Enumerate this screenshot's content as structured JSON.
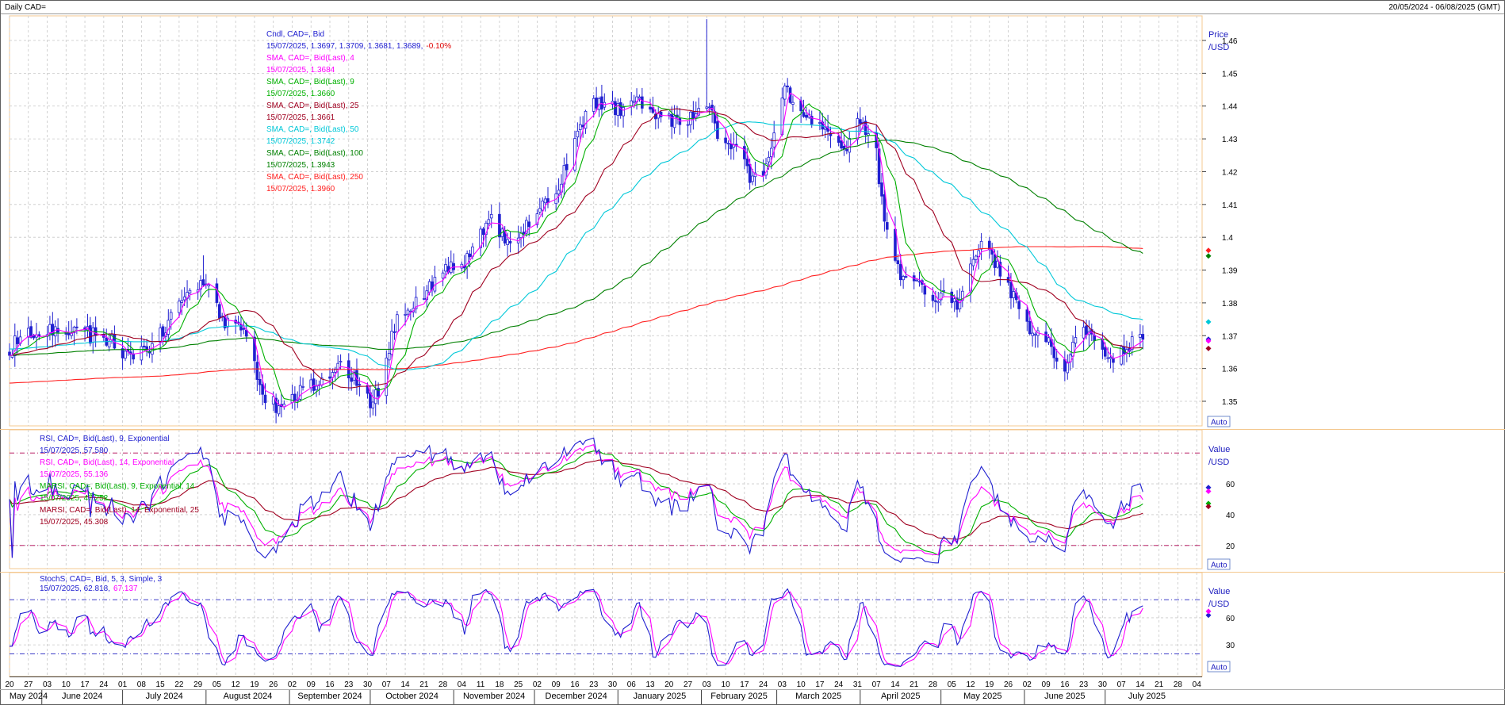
{
  "header": {
    "title": "Daily CAD=",
    "date_range": "20/05/2024 - 06/08/2025 (GMT)"
  },
  "colors": {
    "candle": "#2020d0",
    "sma4": "#ff00ff",
    "sma9": "#00b000",
    "sma25": "#a00020",
    "sma50": "#00c8d8",
    "sma100": "#008000",
    "sma250": "#ff2020",
    "rsi9": "#2020d0",
    "rsi14": "#ff00ff",
    "marsi9": "#00b000",
    "marsi25": "#a00020",
    "stoch_k": "#2020d0",
    "stoch_d": "#ff00ff",
    "panel_border": "#f4c890",
    "grid": "#c8c8c8",
    "level_line": "#b00050"
  },
  "chart_data": [
    {
      "type": "candlestick",
      "panel": "price",
      "legend": [
        {
          "name": "Cndl, CAD=, Bid",
          "value": "15/07/2025, 1.3697, 1.3709, 1.3681, 1.3689,",
          "change": "-0.10%",
          "color_key": "candle"
        },
        {
          "name": "SMA, CAD=, Bid(Last),  4",
          "value": "15/07/2025, 1.3684",
          "color_key": "sma4"
        },
        {
          "name": "SMA, CAD=, Bid(Last),  9",
          "value": "15/07/2025, 1.3660",
          "color_key": "sma9"
        },
        {
          "name": "SMA, CAD=, Bid(Last),  25",
          "value": "15/07/2025, 1.3661",
          "color_key": "sma25"
        },
        {
          "name": "SMA, CAD=, Bid(Last),  50",
          "value": "15/07/2025, 1.3742",
          "color_key": "sma50"
        },
        {
          "name": "SMA, CAD=, Bid(Last),  100",
          "value": "15/07/2025, 1.3943",
          "color_key": "sma100"
        },
        {
          "name": "SMA, CAD=, Bid(Last),  250",
          "value": "15/07/2025, 1.3960",
          "color_key": "sma250"
        }
      ],
      "y_axis_title": [
        "Price",
        "/USD"
      ],
      "y_ticks": [
        "1.46",
        "1.45",
        "1.44",
        "1.43",
        "1.42",
        "1.41",
        "1.4",
        "1.39",
        "1.38",
        "1.37",
        "1.36",
        "1.35"
      ],
      "ylim": [
        1.3425,
        1.4675
      ],
      "auto_label": "Auto",
      "close_anchors": [
        [
          "2024-05-20",
          1.364
        ],
        [
          "2024-05-24",
          1.371
        ],
        [
          "2024-06-05",
          1.372
        ],
        [
          "2024-06-14",
          1.371
        ],
        [
          "2024-06-26",
          1.369
        ],
        [
          "2024-07-03",
          1.364
        ],
        [
          "2024-07-12",
          1.366
        ],
        [
          "2024-07-24",
          1.383
        ],
        [
          "2024-08-02",
          1.385
        ],
        [
          "2024-08-07",
          1.375
        ],
        [
          "2024-08-14",
          1.372
        ],
        [
          "2024-08-23",
          1.351
        ],
        [
          "2024-08-27",
          1.349
        ],
        [
          "2024-09-10",
          1.355
        ],
        [
          "2024-09-18",
          1.361
        ],
        [
          "2024-09-25",
          1.358
        ],
        [
          "2024-10-01",
          1.35
        ],
        [
          "2024-10-04",
          1.354
        ],
        [
          "2024-10-11",
          1.375
        ],
        [
          "2024-10-24",
          1.386
        ],
        [
          "2024-10-31",
          1.391
        ],
        [
          "2024-11-06",
          1.393
        ],
        [
          "2024-11-15",
          1.408
        ],
        [
          "2024-11-21",
          1.397
        ],
        [
          "2024-11-26",
          1.401
        ],
        [
          "2024-12-04",
          1.409
        ],
        [
          "2024-12-10",
          1.415
        ],
        [
          "2024-12-17",
          1.433
        ],
        [
          "2024-12-23",
          1.44
        ],
        [
          "2025-01-02",
          1.439
        ],
        [
          "2025-01-10",
          1.441
        ],
        [
          "2025-01-17",
          1.437
        ],
        [
          "2025-01-24",
          1.435
        ],
        [
          "2025-01-29",
          1.438
        ],
        [
          "2025-02-03",
          1.442
        ],
        [
          "2025-02-07",
          1.431
        ],
        [
          "2025-02-14",
          1.427
        ],
        [
          "2025-02-19",
          1.418
        ],
        [
          "2025-02-25",
          1.421
        ],
        [
          "2025-03-04",
          1.445
        ],
        [
          "2025-03-10",
          1.439
        ],
        [
          "2025-03-14",
          1.437
        ],
        [
          "2025-03-21",
          1.431
        ],
        [
          "2025-03-27",
          1.428
        ],
        [
          "2025-04-01",
          1.437
        ],
        [
          "2025-04-07",
          1.425
        ],
        [
          "2025-04-09",
          1.412
        ],
        [
          "2025-04-11",
          1.402
        ],
        [
          "2025-04-16",
          1.387
        ],
        [
          "2025-04-25",
          1.384
        ],
        [
          "2025-05-02",
          1.382
        ],
        [
          "2025-05-08",
          1.379
        ],
        [
          "2025-05-13",
          1.395
        ],
        [
          "2025-05-19",
          1.398
        ],
        [
          "2025-05-23",
          1.388
        ],
        [
          "2025-05-29",
          1.38
        ],
        [
          "2025-06-03",
          1.372
        ],
        [
          "2025-06-09",
          1.369
        ],
        [
          "2025-06-16",
          1.359
        ],
        [
          "2025-06-19",
          1.366
        ],
        [
          "2025-06-25",
          1.373
        ],
        [
          "2025-07-01",
          1.364
        ],
        [
          "2025-07-04",
          1.36
        ],
        [
          "2025-07-08",
          1.366
        ],
        [
          "2025-07-11",
          1.368
        ],
        [
          "2025-07-15",
          1.369
        ]
      ],
      "spikes": [
        [
          "2025-02-03",
          1.4665
        ],
        [
          "2024-07-31",
          1.3945
        ]
      ]
    },
    {
      "type": "line",
      "panel": "rsi",
      "legend": [
        {
          "name": "RSI, CAD=, Bid(Last),  9, Exponential",
          "value": "15/07/2025, 57.580",
          "color_key": "rsi9"
        },
        {
          "name": "RSI, CAD=, Bid(Last),  14, Exponential",
          "value": "15/07/2025, 55.136",
          "color_key": "rsi14"
        },
        {
          "name": "MARSI, CAD=, Bid(Last),  9, Exponential, 14",
          "value": "15/07/2025, 47.252",
          "color_key": "marsi9"
        },
        {
          "name": "MARSI, CAD=, Bid(Last),  14, Exponential, 25",
          "value": "15/07/2025, 45.308",
          "color_key": "marsi25"
        }
      ],
      "y_axis_title": [
        "Value",
        "/USD"
      ],
      "y_ticks": [
        "60",
        "40",
        "20"
      ],
      "levels": [
        80,
        20
      ],
      "ylim": [
        5,
        95
      ],
      "auto_label": "Auto"
    },
    {
      "type": "line",
      "panel": "stochastic",
      "legend": [
        {
          "name": "StochS, CAD=, Bid,  5, 3, Simple, 3",
          "value": "15/07/2025, 62.818,",
          "value2": "67.137",
          "color_key": "stoch_k"
        }
      ],
      "y_axis_title": [
        "Value",
        "/USD"
      ],
      "y_ticks": [
        "60",
        "30"
      ],
      "levels": [
        80,
        20
      ],
      "ylim": [
        -5,
        110
      ],
      "auto_label": "Auto"
    }
  ],
  "x_axis": {
    "start": "2024-05-20",
    "end": "2025-08-06",
    "day_ticks": [
      [
        "2024-05-20",
        "20"
      ],
      [
        "2024-05-27",
        "27"
      ],
      [
        "2024-06-03",
        "03"
      ],
      [
        "2024-06-10",
        "10"
      ],
      [
        "2024-06-17",
        "17"
      ],
      [
        "2024-06-24",
        "24"
      ],
      [
        "2024-07-01",
        "01"
      ],
      [
        "2024-07-08",
        "08"
      ],
      [
        "2024-07-15",
        "15"
      ],
      [
        "2024-07-22",
        "22"
      ],
      [
        "2024-07-29",
        "29"
      ],
      [
        "2024-08-05",
        "05"
      ],
      [
        "2024-08-12",
        "12"
      ],
      [
        "2024-08-19",
        "19"
      ],
      [
        "2024-08-26",
        "26"
      ],
      [
        "2024-09-02",
        "02"
      ],
      [
        "2024-09-09",
        "09"
      ],
      [
        "2024-09-16",
        "16"
      ],
      [
        "2024-09-23",
        "23"
      ],
      [
        "2024-09-30",
        "30"
      ],
      [
        "2024-10-07",
        "07"
      ],
      [
        "2024-10-14",
        "14"
      ],
      [
        "2024-10-21",
        "21"
      ],
      [
        "2024-10-28",
        "28"
      ],
      [
        "2024-11-04",
        "04"
      ],
      [
        "2024-11-11",
        "11"
      ],
      [
        "2024-11-18",
        "18"
      ],
      [
        "2024-11-25",
        "25"
      ],
      [
        "2024-12-02",
        "02"
      ],
      [
        "2024-12-09",
        "09"
      ],
      [
        "2024-12-16",
        "16"
      ],
      [
        "2024-12-23",
        "23"
      ],
      [
        "2024-12-30",
        "30"
      ],
      [
        "2025-01-06",
        "06"
      ],
      [
        "2025-01-13",
        "13"
      ],
      [
        "2025-01-20",
        "20"
      ],
      [
        "2025-01-27",
        "27"
      ],
      [
        "2025-02-03",
        "03"
      ],
      [
        "2025-02-10",
        "10"
      ],
      [
        "2025-02-17",
        "17"
      ],
      [
        "2025-02-24",
        "24"
      ],
      [
        "2025-03-03",
        "03"
      ],
      [
        "2025-03-10",
        "10"
      ],
      [
        "2025-03-17",
        "17"
      ],
      [
        "2025-03-24",
        "24"
      ],
      [
        "2025-03-31",
        "31"
      ],
      [
        "2025-04-07",
        "07"
      ],
      [
        "2025-04-14",
        "14"
      ],
      [
        "2025-04-21",
        "21"
      ],
      [
        "2025-04-28",
        "28"
      ],
      [
        "2025-05-05",
        "05"
      ],
      [
        "2025-05-12",
        "12"
      ],
      [
        "2025-05-19",
        "19"
      ],
      [
        "2025-05-26",
        "26"
      ],
      [
        "2025-06-02",
        "02"
      ],
      [
        "2025-06-09",
        "09"
      ],
      [
        "2025-06-16",
        "16"
      ],
      [
        "2025-06-23",
        "23"
      ],
      [
        "2025-06-30",
        "30"
      ],
      [
        "2025-07-07",
        "07"
      ],
      [
        "2025-07-14",
        "14"
      ],
      [
        "2025-07-21",
        "21"
      ],
      [
        "2025-07-28",
        "28"
      ],
      [
        "2025-08-04",
        "04"
      ]
    ],
    "month_labels": [
      [
        "2024-05-20",
        "May 2024"
      ],
      [
        "2024-06-01",
        "June 2024"
      ],
      [
        "2024-07-01",
        "July 2024"
      ],
      [
        "2024-08-01",
        "August 2024"
      ],
      [
        "2024-09-01",
        "September 2024"
      ],
      [
        "2024-10-01",
        "October 2024"
      ],
      [
        "2024-11-01",
        "November 2024"
      ],
      [
        "2024-12-01",
        "December 2024"
      ],
      [
        "2025-01-01",
        "January 2025"
      ],
      [
        "2025-02-01",
        "February 2025"
      ],
      [
        "2025-03-01",
        "March 2025"
      ],
      [
        "2025-04-01",
        "April 2025"
      ],
      [
        "2025-05-01",
        "May 2025"
      ],
      [
        "2025-06-01",
        "June 2025"
      ],
      [
        "2025-07-01",
        "July 2025"
      ]
    ]
  }
}
